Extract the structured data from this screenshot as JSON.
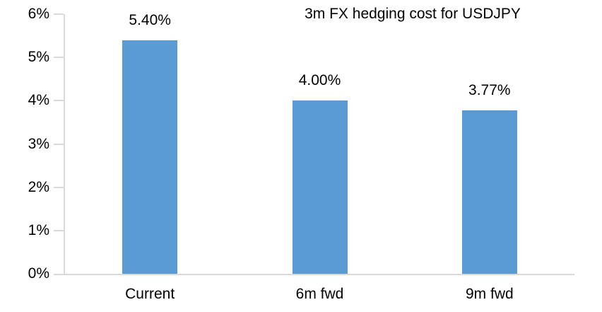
{
  "chart_data": {
    "type": "bar",
    "title": "3m FX hedging cost for USDJPY",
    "categories": [
      "Current",
      "6m fwd",
      "9m fwd"
    ],
    "values": [
      5.4,
      4.0,
      3.77
    ],
    "value_labels": [
      "5.40%",
      "4.00%",
      "3.77%"
    ],
    "series_name": "3m FX hedging cost",
    "xlabel": "",
    "ylabel": "",
    "ylim": [
      0,
      6
    ],
    "ytick_labels": [
      "0%",
      "1%",
      "2%",
      "3%",
      "4%",
      "5%",
      "6%"
    ],
    "ytick_values": [
      0,
      1,
      2,
      3,
      4,
      5,
      6
    ],
    "grid": false,
    "legend": false,
    "bar_color": "#5B9BD5",
    "axis_color": "#D9D9D9",
    "text_color": "#000000",
    "background_color": "#FFFFFF"
  }
}
